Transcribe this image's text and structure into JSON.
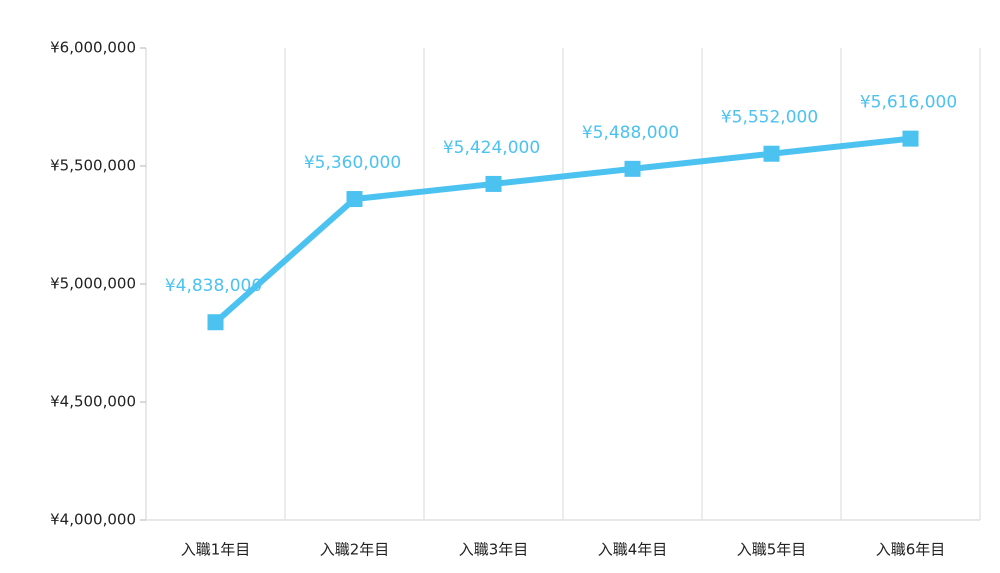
{
  "chart_data": {
    "type": "line",
    "categories": [
      "入職1年目",
      "入職2年目",
      "入職3年目",
      "入職4年目",
      "入職5年目",
      "入職6年目"
    ],
    "values": [
      4838000,
      5360000,
      5424000,
      5488000,
      5552000,
      5616000
    ],
    "value_labels": [
      "¥4,838,000",
      "¥5,360,000",
      "¥5,424,000",
      "¥5,488,000",
      "¥5,552,000",
      "¥5,616,000"
    ],
    "color": "#4cc2f1",
    "ylim": [
      4000000,
      6000000
    ],
    "yticks": [
      {
        "value": 4000000,
        "label": "¥4,000,000"
      },
      {
        "value": 4500000,
        "label": "¥4,500,000"
      },
      {
        "value": 5000000,
        "label": "¥5,000,000"
      },
      {
        "value": 5500000,
        "label": "¥5,500,000"
      },
      {
        "value": 6000000,
        "label": "¥6,000,000"
      }
    ]
  }
}
